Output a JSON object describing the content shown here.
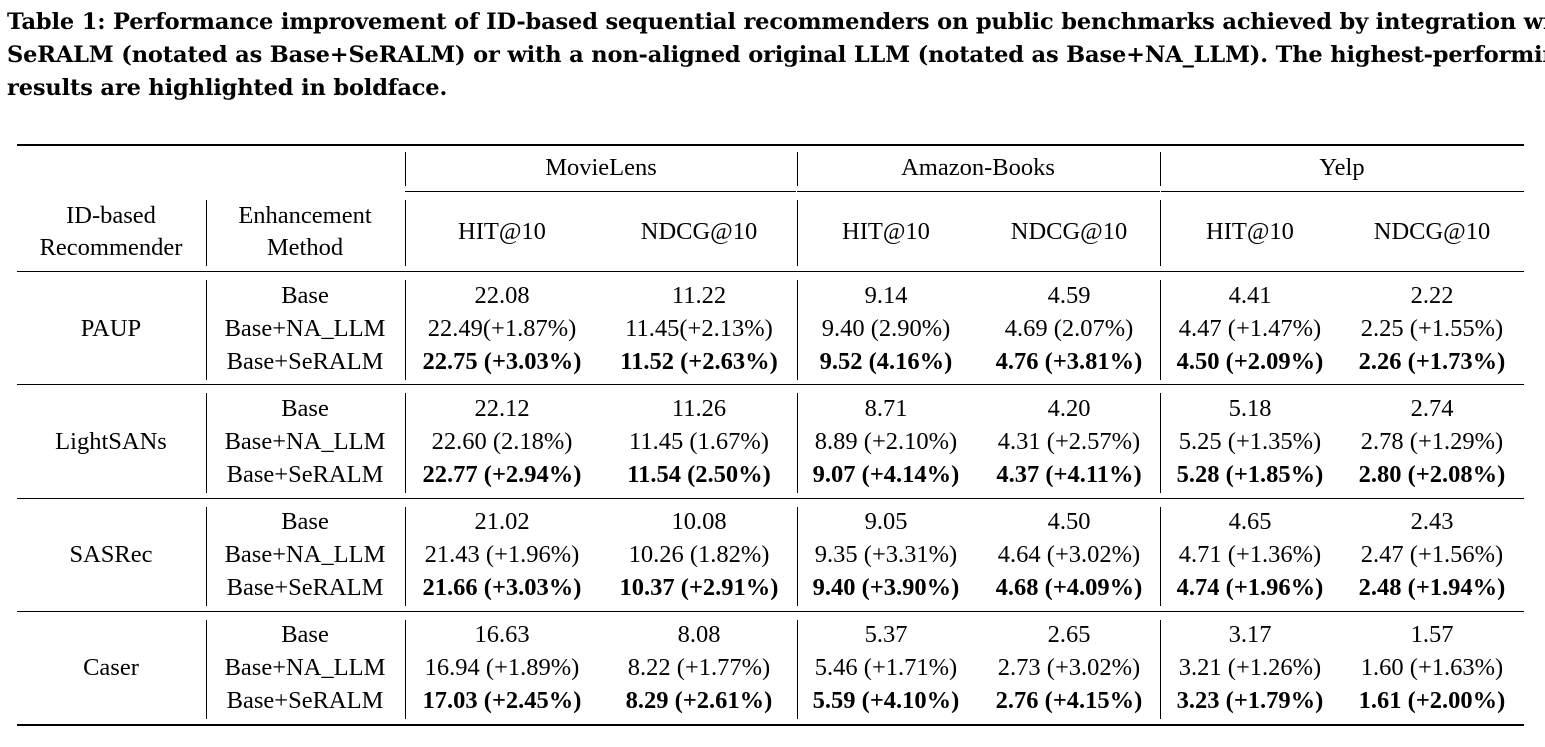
{
  "caption": [
    "Table 1: Performance improvement of ID-based sequential recommenders on public benchmarks achieved by integration with",
    "SeRALM (notated as Base+SeRALM) or with a non-aligned original LLM (notated as Base+NA_LLM). The highest-performing",
    "results are highlighted in boldface."
  ],
  "datasets": [
    "MovieLens",
    "Amazon-Books",
    "Yelp"
  ],
  "col_headers": {
    "recommender": [
      "ID-based",
      "Recommender"
    ],
    "method": [
      "Enhancement",
      "Method"
    ],
    "metrics": [
      "HIT@10",
      "NDCG@10",
      "HIT@10",
      "NDCG@10",
      "HIT@10",
      "NDCG@10"
    ]
  },
  "groups": [
    {
      "name": "PAUP",
      "rows": [
        {
          "method": "Base",
          "cells": [
            "22.08",
            "11.22",
            "9.14",
            "4.59",
            "4.41",
            "2.22"
          ],
          "bold": false
        },
        {
          "method": "Base+NA_LLM",
          "cells": [
            "22.49(+1.87%)",
            "11.45(+2.13%)",
            "9.40 (2.90%)",
            "4.69 (2.07%)",
            "4.47 (+1.47%)",
            "2.25 (+1.55%)"
          ],
          "bold": false
        },
        {
          "method": "Base+SeRALM",
          "cells": [
            "22.75 (+3.03%)",
            "11.52 (+2.63%)",
            "9.52 (4.16%)",
            "4.76 (+3.81%)",
            "4.50 (+2.09%)",
            "2.26 (+1.73%)"
          ],
          "bold": true
        }
      ]
    },
    {
      "name": "LightSANs",
      "rows": [
        {
          "method": "Base",
          "cells": [
            "22.12",
            "11.26",
            "8.71",
            "4.20",
            "5.18",
            "2.74"
          ],
          "bold": false
        },
        {
          "method": "Base+NA_LLM",
          "cells": [
            "22.60 (2.18%)",
            "11.45 (1.67%)",
            "8.89 (+2.10%)",
            "4.31 (+2.57%)",
            "5.25 (+1.35%)",
            "2.78 (+1.29%)"
          ],
          "bold": false
        },
        {
          "method": "Base+SeRALM",
          "cells": [
            "22.77 (+2.94%)",
            "11.54 (2.50%)",
            "9.07 (+4.14%)",
            "4.37 (+4.11%)",
            "5.28 (+1.85%)",
            "2.80 (+2.08%)"
          ],
          "bold": true
        }
      ]
    },
    {
      "name": "SASRec",
      "rows": [
        {
          "method": "Base",
          "cells": [
            "21.02",
            "10.08",
            "9.05",
            "4.50",
            "4.65",
            "2.43"
          ],
          "bold": false
        },
        {
          "method": "Base+NA_LLM",
          "cells": [
            "21.43 (+1.96%)",
            "10.26 (1.82%)",
            "9.35 (+3.31%)",
            "4.64 (+3.02%)",
            "4.71 (+1.36%)",
            "2.47 (+1.56%)"
          ],
          "bold": false
        },
        {
          "method": "Base+SeRALM",
          "cells": [
            "21.66 (+3.03%)",
            "10.37 (+2.91%)",
            "9.40 (+3.90%)",
            "4.68 (+4.09%)",
            "4.74 (+1.96%)",
            "2.48 (+1.94%)"
          ],
          "bold": true
        }
      ]
    },
    {
      "name": "Caser",
      "rows": [
        {
          "method": "Base",
          "cells": [
            "16.63",
            "8.08",
            "5.37",
            "2.65",
            "3.17",
            "1.57"
          ],
          "bold": false
        },
        {
          "method": "Base+NA_LLM",
          "cells": [
            "16.94 (+1.89%)",
            "8.22 (+1.77%)",
            "5.46 (+1.71%)",
            "2.73 (+3.02%)",
            "3.21 (+1.26%)",
            "1.60 (+1.63%)"
          ],
          "bold": false
        },
        {
          "method": "Base+SeRALM",
          "cells": [
            "17.03 (+2.45%)",
            "8.29 (+2.61%)",
            "5.59 (+4.10%)",
            "2.76 (+4.15%)",
            "3.23 (+1.79%)",
            "1.61 (+2.00%)"
          ],
          "bold": true
        }
      ]
    }
  ]
}
